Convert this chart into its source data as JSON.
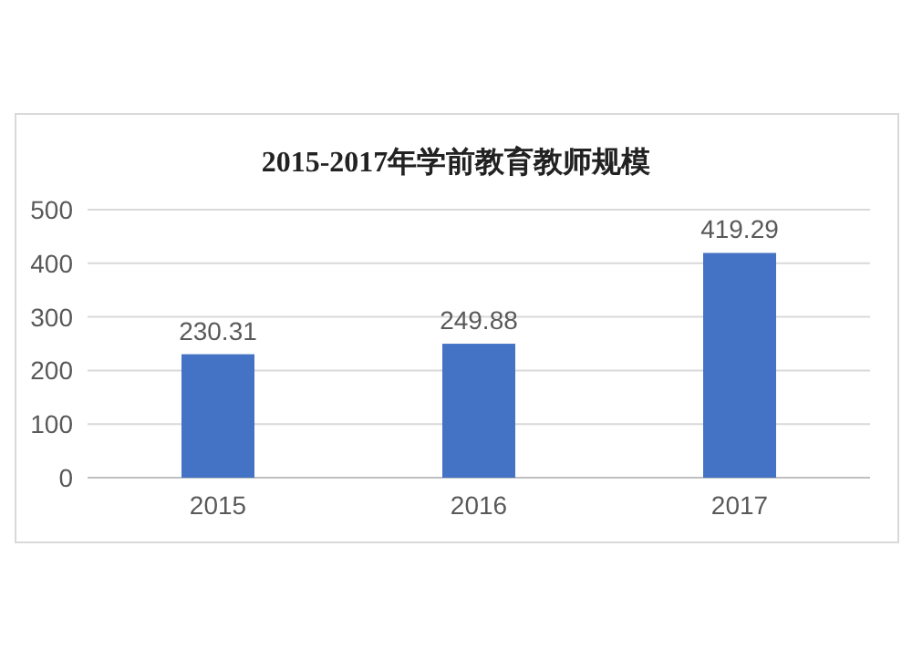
{
  "chart_data": {
    "type": "bar",
    "title": "2015-2017年学前教育教师规模",
    "categories": [
      "2015",
      "2016",
      "2017"
    ],
    "values": [
      230.31,
      249.88,
      419.29
    ],
    "color": "#4472c4",
    "ylim": [
      0,
      500
    ],
    "yticks": [
      0,
      100,
      200,
      300,
      400,
      500
    ],
    "grid": "y",
    "data_labels": true
  }
}
